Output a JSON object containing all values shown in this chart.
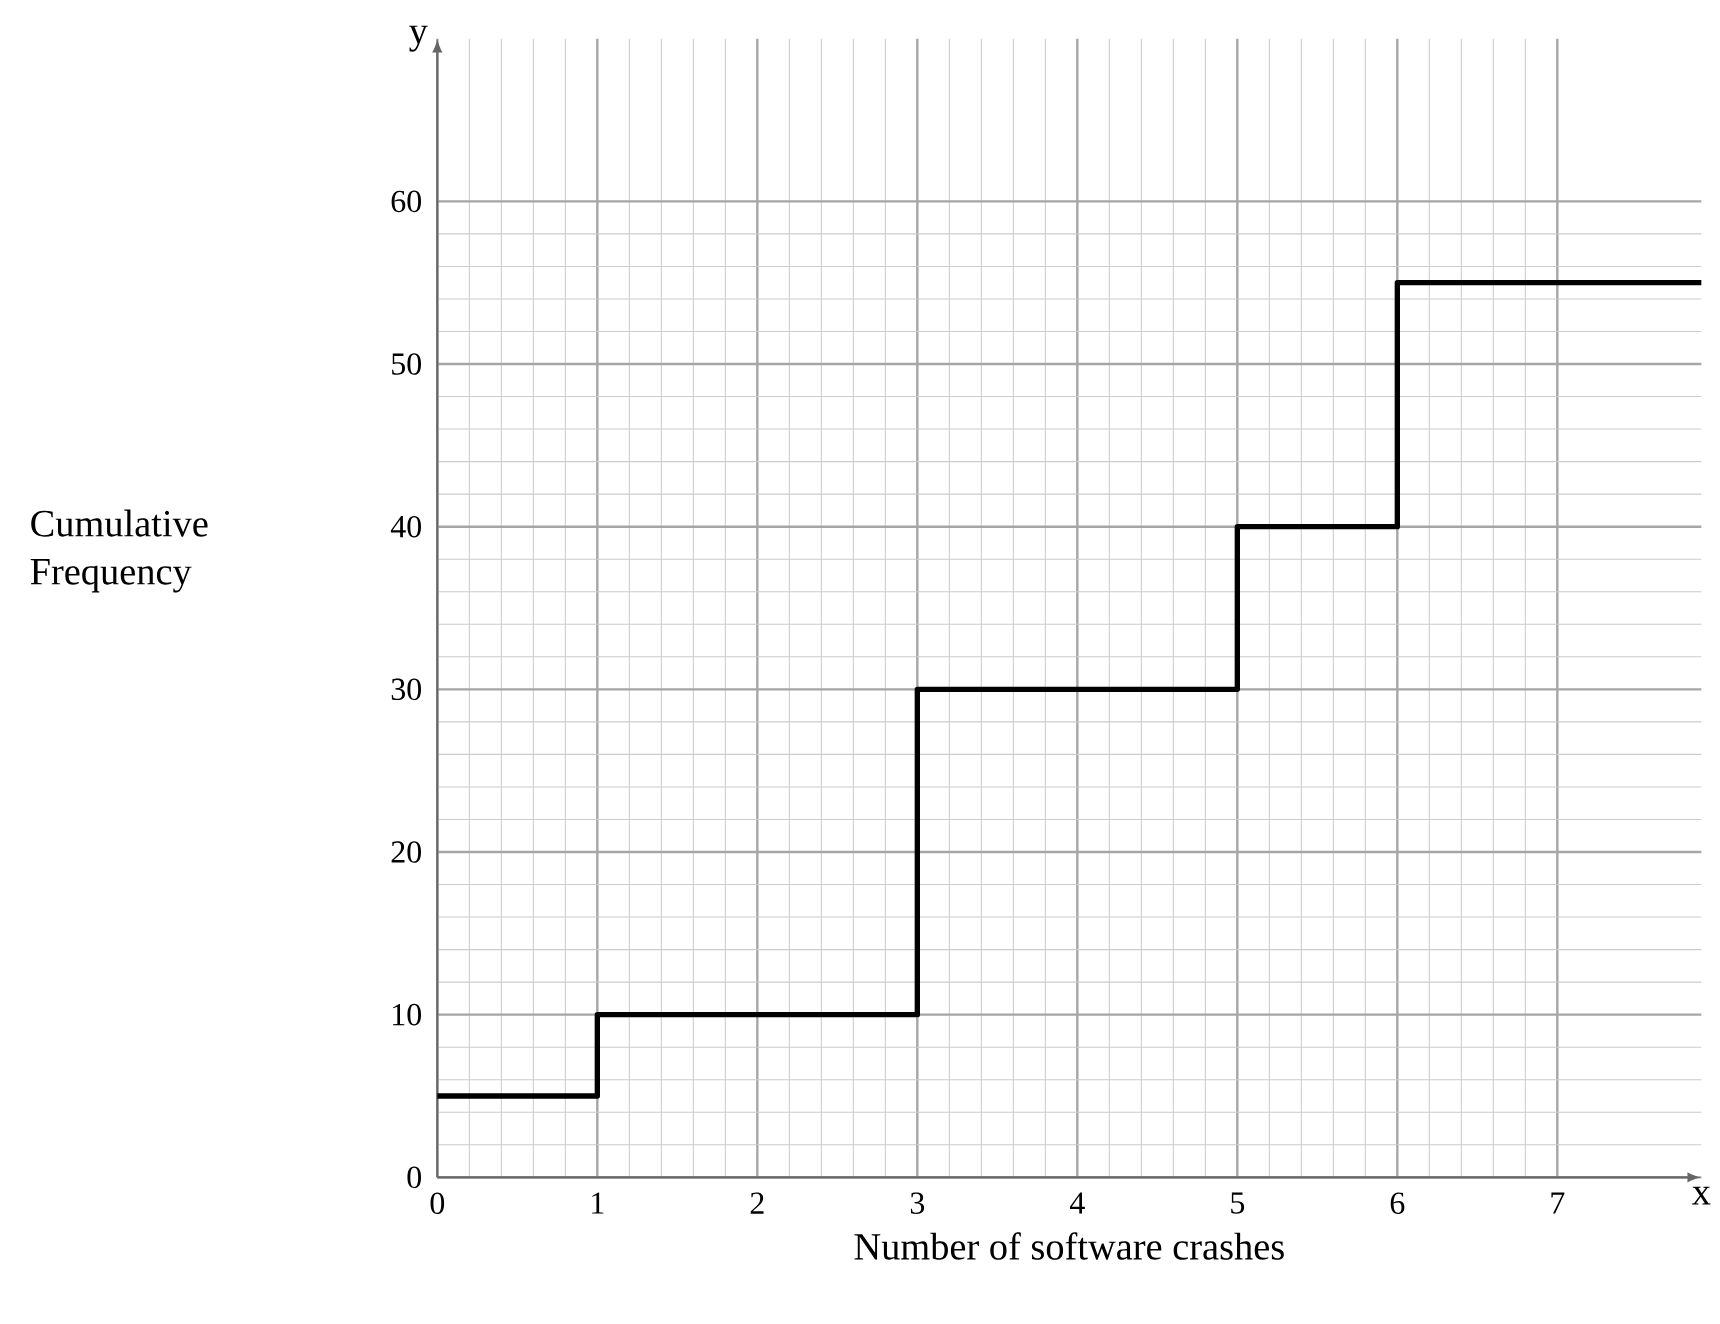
{
  "chart_data": {
    "type": "step",
    "xlabel": "Number of software crashes",
    "ylabel": "Cumulative Frequency",
    "annotations": [
      "y",
      "x"
    ],
    "x": [
      0,
      1,
      3,
      5,
      6,
      7.9
    ],
    "values": [
      5,
      10,
      30,
      40,
      55,
      55
    ],
    "color": "#000000",
    "xlim": [
      0,
      7.9
    ],
    "ylim": [
      0,
      70
    ],
    "xticks": [
      0,
      1,
      2,
      3,
      4,
      5,
      6,
      7
    ],
    "yticks": [
      0,
      10,
      20,
      30,
      40,
      50,
      60
    ],
    "grid": true,
    "marker": "none",
    "line_style": "solid"
  }
}
